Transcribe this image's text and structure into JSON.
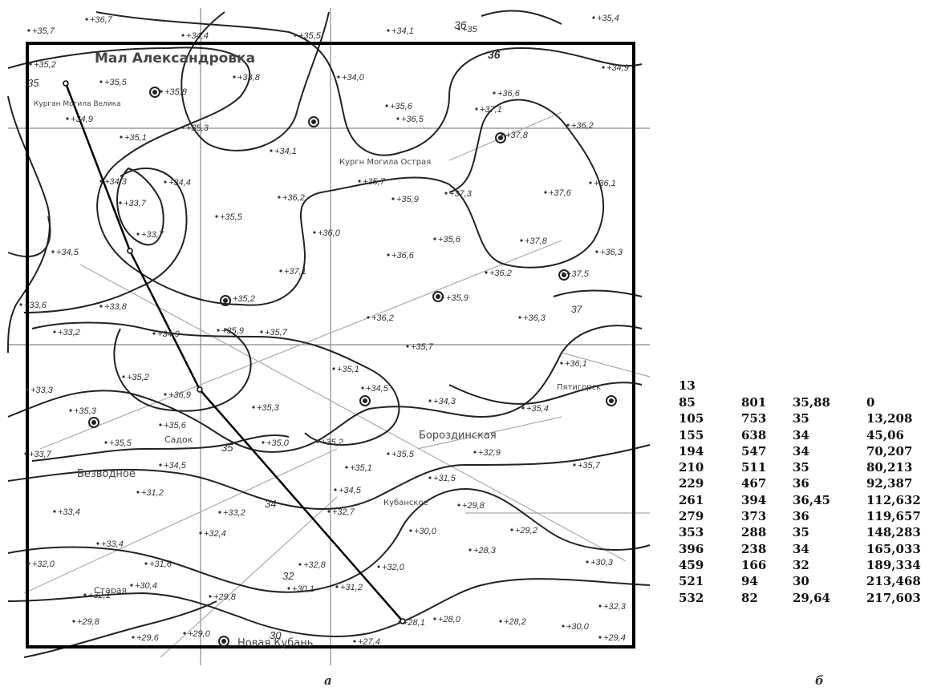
{
  "map": {
    "place_labels": [
      "Мал Александровка",
      "Безводное",
      "Бороздинская",
      "Новая Кубань",
      "Пятигорск",
      "Кубанское",
      "Старая",
      "Садок",
      "Кургн Могила Острая",
      "Курган Могила Велика"
    ],
    "spot_heights": [
      "+35,7",
      "+36,7",
      "+34,4",
      "+35,5",
      "+34,1",
      "+35",
      "+35,4",
      "+35,2",
      "+35,5",
      "+35,8",
      "+33,8",
      "+34,0",
      "+35,6",
      "+36,6",
      "+37,1",
      "+36,2",
      "+34,9",
      "+35,1",
      "+35,3",
      "+34,1",
      "+36,5",
      "+37,8",
      "+34,9",
      "+35,7",
      "+37,6",
      "+36,1",
      "+34,3",
      "+34,4",
      "+33,7",
      "+36,2",
      "+35,9",
      "+37,3",
      "+35,5",
      "+33,7",
      "+36,0",
      "+35,6",
      "+37,8",
      "+36,3",
      "+34,5",
      "+33,8",
      "+37,1",
      "+36,6",
      "+36,2",
      "+37,5",
      "+33,6",
      "+35,2",
      "+36,2",
      "+35,9",
      "+36,3",
      "+33,2",
      "+34,9",
      "+35,9",
      "+35,7",
      "+35,7",
      "+36,1",
      "+35,2",
      "+35,1",
      "+34,5",
      "+34,3",
      "+35,4",
      "+33,3",
      "+35,3",
      "+36,9",
      "+35,3",
      "+35,6",
      "+35,5",
      "+35,0",
      "+35,2",
      "+35,5",
      "+32,9",
      "+35,7",
      "+33,7",
      "+34,5",
      "+31,2",
      "+35,1",
      "+31,5",
      "+33,4",
      "+33,2",
      "+34,5",
      "+32,7",
      "+29,8",
      "+33,4",
      "+32,4",
      "+30,0",
      "+29,2",
      "+32,0",
      "+31,6",
      "+32,8",
      "+32,0",
      "+28,3",
      "+30,3",
      "+32,1",
      "+30,4",
      "+29,8",
      "+30,1",
      "+31,2",
      "+28,0",
      "+28,2",
      "+32,3",
      "+29,8",
      "+29,6",
      "+29,0",
      "+28,1",
      "+30,0",
      "+29,4",
      "+27,4"
    ],
    "contour_labels": [
      "36",
      "37",
      "36",
      "37",
      "35",
      "34",
      "35",
      "34",
      "32",
      "30",
      "35"
    ]
  },
  "table": {
    "header": "13",
    "rows": [
      [
        "85",
        "801",
        "35,88",
        "0"
      ],
      [
        "105",
        "753",
        "35",
        "13,208"
      ],
      [
        "155",
        "638",
        "34",
        "45,06"
      ],
      [
        "194",
        "547",
        "34",
        "70,207"
      ],
      [
        "210",
        "511",
        "35",
        "80,213"
      ],
      [
        "229",
        "467",
        "36",
        "92,387"
      ],
      [
        "261",
        "394",
        "36,45",
        "112,632"
      ],
      [
        "279",
        "373",
        "36",
        "119,657"
      ],
      [
        "353",
        "288",
        "35",
        "148,283"
      ],
      [
        "396",
        "238",
        "34",
        "165,033"
      ],
      [
        "459",
        "166",
        "32",
        "189,334"
      ],
      [
        "521",
        "94",
        "30",
        "213,468"
      ],
      [
        "532",
        "82",
        "29,64",
        "217,603"
      ]
    ]
  },
  "captions": {
    "left": "а",
    "right": "б"
  }
}
